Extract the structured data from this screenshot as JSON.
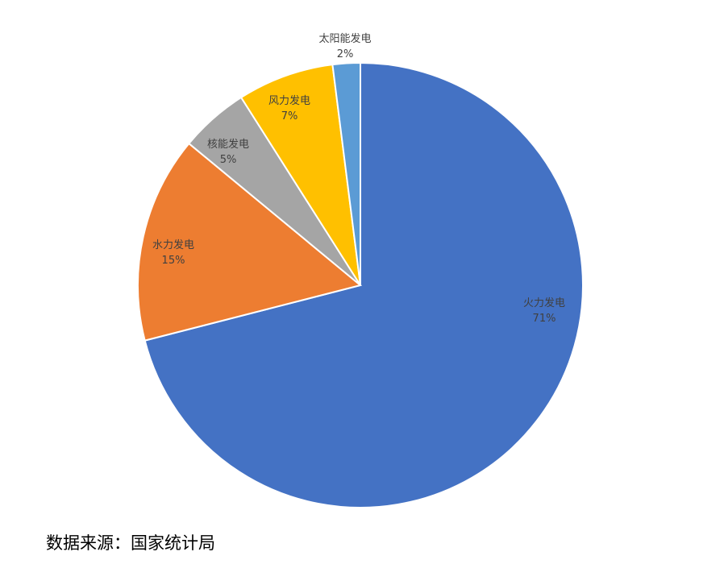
{
  "chart_data": {
    "type": "pie",
    "start": "top",
    "direction": "clockwise",
    "slices": [
      {
        "label": "火力发电",
        "value": 71,
        "value_label": "71%",
        "color": "#4472C4"
      },
      {
        "label": "水力发电",
        "value": 15,
        "value_label": "15%",
        "color": "#ED7D31"
      },
      {
        "label": "核能发电",
        "value": 5,
        "value_label": "5%",
        "color": "#A5A5A5"
      },
      {
        "label": "风力发电",
        "value": 7,
        "value_label": "7%",
        "color": "#FFC000"
      },
      {
        "label": "太阳能发电",
        "value": 2,
        "value_label": "2%",
        "color": "#5B9BD5"
      }
    ]
  },
  "source": "数据来源：国家统计局"
}
